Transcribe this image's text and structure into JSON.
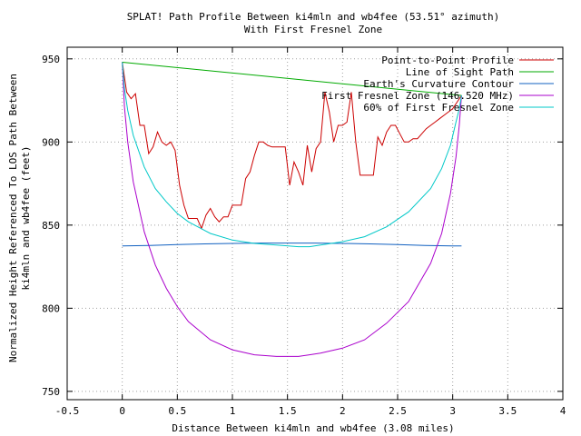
{
  "chart_data": {
    "type": "line",
    "title": "SPLAT! Path Profile Between ki4mln and wb4fee (53.51° azimuth)",
    "subtitle": "With First Fresnel Zone",
    "xlabel": "Distance Between ki4mln and wb4fee (3.08 miles)",
    "ylabel": "Normalized Height Referenced To LOS Path Between ki4mln and wb4fee (feet)",
    "ylabel_lines": [
      "Normalized Height Referenced To LOS Path Between",
      "ki4mln and wb4fee (feet)"
    ],
    "xlim": [
      -0.5,
      4
    ],
    "ylim": [
      745,
      957
    ],
    "xticks": [
      -0.5,
      0,
      0.5,
      1,
      1.5,
      2,
      2.5,
      3,
      3.5,
      4
    ],
    "xtick_labels": [
      "-0.5",
      "0",
      "0.5",
      "1",
      "1.5",
      "2",
      "2.5",
      "3",
      "3.5",
      "4"
    ],
    "yticks": [
      750,
      800,
      850,
      900,
      950
    ],
    "ytick_labels": [
      "750",
      "800",
      "850",
      "900",
      "950"
    ],
    "grid": true,
    "legend_position": "top-right",
    "series": [
      {
        "name": "Point-to-Point Profile",
        "color": "#cc0000",
        "x": [
          0,
          0.04,
          0.08,
          0.12,
          0.16,
          0.2,
          0.24,
          0.28,
          0.32,
          0.36,
          0.4,
          0.44,
          0.48,
          0.52,
          0.56,
          0.6,
          0.64,
          0.68,
          0.72,
          0.76,
          0.8,
          0.84,
          0.88,
          0.92,
          0.96,
          1.0,
          1.04,
          1.08,
          1.12,
          1.16,
          1.2,
          1.24,
          1.28,
          1.32,
          1.36,
          1.4,
          1.44,
          1.48,
          1.52,
          1.56,
          1.6,
          1.64,
          1.68,
          1.72,
          1.76,
          1.8,
          1.84,
          1.88,
          1.92,
          1.96,
          2.0,
          2.04,
          2.08,
          2.12,
          2.16,
          2.2,
          2.24,
          2.28,
          2.32,
          2.36,
          2.4,
          2.44,
          2.48,
          2.52,
          2.56,
          2.6,
          2.64,
          2.68,
          2.72,
          2.76,
          2.8,
          2.84,
          2.88,
          2.92,
          2.96,
          3.0,
          3.04,
          3.08
        ],
        "values": [
          948,
          930,
          926,
          929,
          910,
          910,
          893,
          897,
          906,
          900,
          898,
          900,
          895,
          874,
          862,
          854,
          854,
          854,
          848,
          856,
          860,
          855,
          852,
          855,
          855,
          862,
          862,
          862,
          878,
          882,
          892,
          900,
          900,
          898,
          897,
          897,
          897,
          897,
          874,
          888,
          882,
          874,
          898,
          882,
          896,
          900,
          930,
          918,
          900,
          910,
          910,
          912,
          930,
          900,
          880,
          880,
          880,
          880,
          903,
          898,
          906,
          910,
          910,
          905,
          900,
          900,
          902,
          902,
          905,
          908,
          910,
          912,
          914,
          916,
          918,
          920,
          924,
          928
        ]
      },
      {
        "name": "Line of Sight Path",
        "color": "#00aa00",
        "x": [
          0,
          3.08
        ],
        "values": [
          948,
          928
        ]
      },
      {
        "name": "Earth's Curvature Contour",
        "color": "#1060c0",
        "x": [
          0,
          0.25,
          0.5,
          0.75,
          1.0,
          1.25,
          1.5,
          1.75,
          2.0,
          2.25,
          2.5,
          2.75,
          3.0,
          3.08
        ],
        "values": [
          837.5,
          837.8,
          838.3,
          838.7,
          839,
          839.2,
          839.2,
          839.2,
          839,
          838.7,
          838.3,
          837.8,
          837.5,
          837.5
        ]
      },
      {
        "name": "First Fresnel Zone (146.520 MHz)",
        "color": "#aa00cc",
        "x": [
          0,
          0.02,
          0.05,
          0.1,
          0.2,
          0.3,
          0.4,
          0.5,
          0.6,
          0.8,
          1.0,
          1.2,
          1.4,
          1.6,
          1.7,
          1.8,
          2.0,
          2.2,
          2.4,
          2.6,
          2.8,
          2.9,
          2.98,
          3.03,
          3.06,
          3.08
        ],
        "values": [
          948,
          921,
          900,
          876,
          846,
          826,
          812,
          801,
          792,
          781,
          775,
          772,
          771,
          771,
          772,
          773,
          776,
          781,
          791,
          804,
          827,
          845,
          869,
          891,
          910,
          928
        ]
      },
      {
        "name": "60% of First Fresnel Zone",
        "color": "#00c8c8",
        "x": [
          0,
          0.02,
          0.05,
          0.1,
          0.2,
          0.3,
          0.4,
          0.5,
          0.6,
          0.8,
          1.0,
          1.2,
          1.4,
          1.6,
          1.7,
          1.8,
          2.0,
          2.2,
          2.4,
          2.6,
          2.8,
          2.9,
          2.98,
          3.03,
          3.06,
          3.08
        ],
        "values": [
          948,
          932,
          919,
          904,
          885,
          872,
          864,
          857,
          852,
          845,
          841,
          839,
          838,
          837,
          837,
          838,
          840,
          843,
          849,
          858,
          872,
          884,
          898,
          912,
          920,
          928
        ]
      }
    ]
  }
}
